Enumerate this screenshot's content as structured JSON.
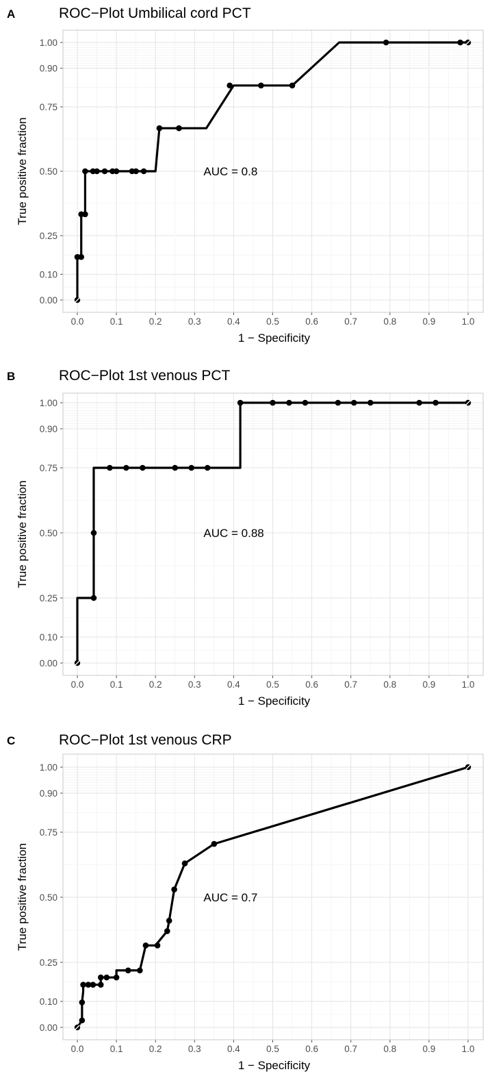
{
  "chart_data": [
    {
      "type": "line",
      "panel": "A",
      "title": "ROC−Plot Umbilical cord PCT",
      "xlabel": "1 − Specificity",
      "ylabel": "True positive fraction",
      "annotation": "AUC = 0.8",
      "xlim": [
        0,
        1
      ],
      "ylim": [
        0,
        1
      ],
      "x_ticks": [
        0.0,
        0.1,
        0.2,
        0.3,
        0.4,
        0.5,
        0.6,
        0.7,
        0.8,
        0.9,
        1.0
      ],
      "x_tick_labels": [
        "0.0",
        "0.1",
        "0.2",
        "0.3",
        "0.4",
        "0.5",
        "0.6",
        "0.7",
        "0.8",
        "0.9",
        "1.0"
      ],
      "y_ticks": [
        0.0,
        0.1,
        0.25,
        0.5,
        0.75,
        0.9,
        1.0
      ],
      "y_tick_labels": [
        "0.00",
        "0.10",
        "0.25",
        "0.50",
        "0.75",
        "0.90",
        "1.00"
      ],
      "grid": true,
      "line": [
        [
          0,
          0
        ],
        [
          0,
          0.167
        ],
        [
          0.01,
          0.167
        ],
        [
          0.01,
          0.333
        ],
        [
          0.02,
          0.333
        ],
        [
          0.02,
          0.5
        ],
        [
          0.2,
          0.5
        ],
        [
          0.21,
          0.667
        ],
        [
          0.33,
          0.667
        ],
        [
          0.4,
          0.833
        ],
        [
          0.55,
          0.833
        ],
        [
          0.67,
          1
        ],
        [
          1,
          1
        ]
      ],
      "points": [
        [
          0,
          0.167
        ],
        [
          0.01,
          0.167
        ],
        [
          0.01,
          0.333
        ],
        [
          0.02,
          0.333
        ],
        [
          0.02,
          0.5
        ],
        [
          0.04,
          0.5
        ],
        [
          0.05,
          0.5
        ],
        [
          0.07,
          0.5
        ],
        [
          0.09,
          0.5
        ],
        [
          0.1,
          0.5
        ],
        [
          0.14,
          0.5
        ],
        [
          0.15,
          0.5
        ],
        [
          0.17,
          0.5
        ],
        [
          0.21,
          0.667
        ],
        [
          0.26,
          0.667
        ],
        [
          0.39,
          0.833
        ],
        [
          0.47,
          0.833
        ],
        [
          0.55,
          0.833
        ],
        [
          0.79,
          1
        ],
        [
          0.98,
          1
        ]
      ]
    },
    {
      "type": "line",
      "panel": "B",
      "title": "ROC−Plot 1st venous PCT",
      "xlabel": "1 − Specificity",
      "ylabel": "True positive fraction",
      "annotation": "AUC = 0.88",
      "xlim": [
        0,
        1
      ],
      "ylim": [
        0,
        1
      ],
      "x_ticks": [
        0.0,
        0.1,
        0.2,
        0.3,
        0.4,
        0.5,
        0.6,
        0.7,
        0.8,
        0.9,
        1.0
      ],
      "x_tick_labels": [
        "0.0",
        "0.1",
        "0.2",
        "0.3",
        "0.4",
        "0.5",
        "0.6",
        "0.7",
        "0.8",
        "0.9",
        "1.0"
      ],
      "y_ticks": [
        0.0,
        0.1,
        0.25,
        0.5,
        0.75,
        0.9,
        1.0
      ],
      "y_tick_labels": [
        "0.00",
        "0.10",
        "0.25",
        "0.50",
        "0.75",
        "0.90",
        "1.00"
      ],
      "grid": true,
      "line": [
        [
          0,
          0
        ],
        [
          0,
          0.25
        ],
        [
          0.042,
          0.25
        ],
        [
          0.042,
          0.75
        ],
        [
          0.417,
          0.75
        ],
        [
          0.417,
          1
        ],
        [
          1,
          1
        ]
      ],
      "points": [
        [
          0.042,
          0.25
        ],
        [
          0.042,
          0.5
        ],
        [
          0.083,
          0.75
        ],
        [
          0.125,
          0.75
        ],
        [
          0.167,
          0.75
        ],
        [
          0.25,
          0.75
        ],
        [
          0.292,
          0.75
        ],
        [
          0.333,
          0.75
        ],
        [
          0.417,
          1
        ],
        [
          0.5,
          1
        ],
        [
          0.542,
          1
        ],
        [
          0.583,
          1
        ],
        [
          0.667,
          1
        ],
        [
          0.708,
          1
        ],
        [
          0.75,
          1
        ],
        [
          0.875,
          1
        ],
        [
          0.917,
          1
        ]
      ]
    },
    {
      "type": "line",
      "panel": "C",
      "title": "ROC−Plot 1st venous CRP",
      "xlabel": "1 − Specificity",
      "ylabel": "True positive fraction",
      "annotation": "AUC = 0.7",
      "xlim": [
        0,
        1
      ],
      "ylim": [
        0,
        1
      ],
      "x_ticks": [
        0.0,
        0.1,
        0.2,
        0.3,
        0.4,
        0.5,
        0.6,
        0.7,
        0.8,
        0.9,
        1.0
      ],
      "x_tick_labels": [
        "0.0",
        "0.1",
        "0.2",
        "0.3",
        "0.4",
        "0.5",
        "0.6",
        "0.7",
        "0.8",
        "0.9",
        "1.0"
      ],
      "y_ticks": [
        0.0,
        0.1,
        0.25,
        0.5,
        0.75,
        0.9,
        1.0
      ],
      "y_tick_labels": [
        "0.00",
        "0.10",
        "0.25",
        "0.50",
        "0.75",
        "0.90",
        "1.00"
      ],
      "grid": true,
      "line": [
        [
          0,
          0
        ],
        [
          0.012,
          0.027
        ],
        [
          0.012,
          0.096
        ],
        [
          0.015,
          0.138
        ],
        [
          0.015,
          0.164
        ],
        [
          0.06,
          0.164
        ],
        [
          0.06,
          0.192
        ],
        [
          0.1,
          0.192
        ],
        [
          0.1,
          0.219
        ],
        [
          0.16,
          0.219
        ],
        [
          0.175,
          0.315
        ],
        [
          0.2,
          0.315
        ],
        [
          0.23,
          0.37
        ],
        [
          0.235,
          0.41
        ],
        [
          0.248,
          0.53
        ],
        [
          0.275,
          0.63
        ],
        [
          0.35,
          0.705
        ],
        [
          1,
          1
        ]
      ],
      "points": [
        [
          0.012,
          0.027
        ],
        [
          0.012,
          0.096
        ],
        [
          0.015,
          0.164
        ],
        [
          0.028,
          0.164
        ],
        [
          0.04,
          0.164
        ],
        [
          0.06,
          0.164
        ],
        [
          0.06,
          0.192
        ],
        [
          0.075,
          0.192
        ],
        [
          0.1,
          0.192
        ],
        [
          0.13,
          0.219
        ],
        [
          0.16,
          0.219
        ],
        [
          0.175,
          0.315
        ],
        [
          0.205,
          0.315
        ],
        [
          0.23,
          0.37
        ],
        [
          0.235,
          0.41
        ],
        [
          0.248,
          0.53
        ],
        [
          0.275,
          0.63
        ],
        [
          0.35,
          0.705
        ]
      ]
    }
  ]
}
